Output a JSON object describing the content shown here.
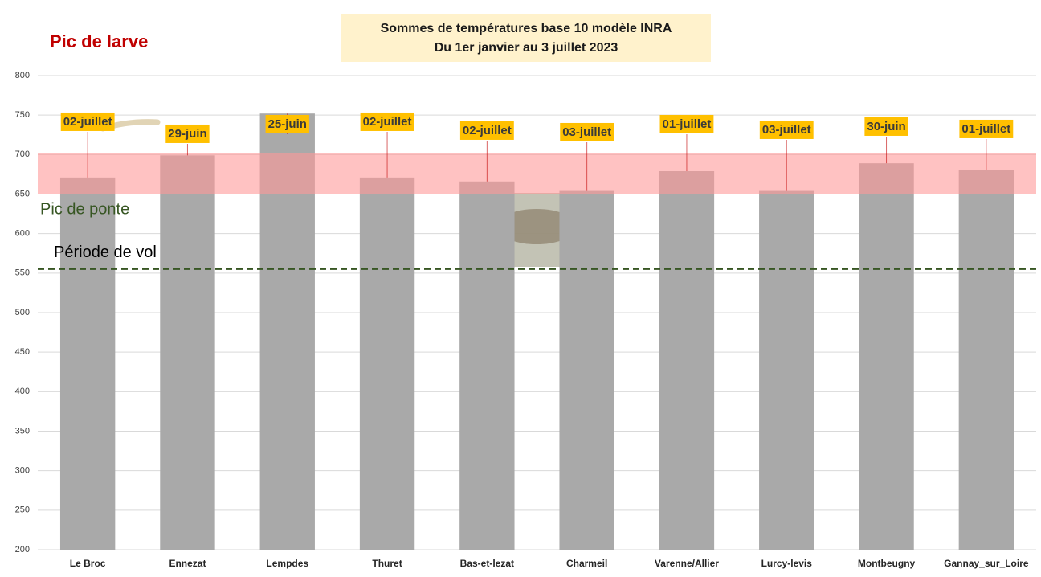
{
  "chart_data": {
    "type": "bar",
    "title": "Sommes de températures base 10 modèle INRA",
    "subtitle": "Du 1er janvier au 3 juillet 2023",
    "corner_label": "Pic de larve",
    "categories": [
      "Le Broc",
      "Ennezat",
      "Lempdes",
      "Thuret",
      "Bas-et-lezat",
      "Charmeil",
      "Varenne/Allier",
      "Lurcy-levis",
      "Montbeugny",
      "Gannay_sur_Loire"
    ],
    "values": [
      671,
      699,
      752,
      671,
      666,
      654,
      679,
      654,
      689,
      681
    ],
    "annotations": [
      "02-juillet",
      "29-juin",
      "25-juin",
      "02-juillet",
      "02-juillet",
      "03-juillet",
      "01-juillet",
      "03-juillet",
      "30-juin",
      "01-juillet"
    ],
    "color": "#a9a9a9",
    "band": {
      "range": [
        650,
        702
      ],
      "label": "Pic de ponte",
      "color": "#ff9999"
    },
    "reference_line": {
      "value": 555,
      "label": "Période de vol",
      "color": "#375623"
    },
    "ylim": [
      200,
      800
    ],
    "yticks": [
      200,
      250,
      300,
      350,
      400,
      450,
      500,
      550,
      600,
      650,
      700,
      750,
      800
    ],
    "grid": true
  }
}
